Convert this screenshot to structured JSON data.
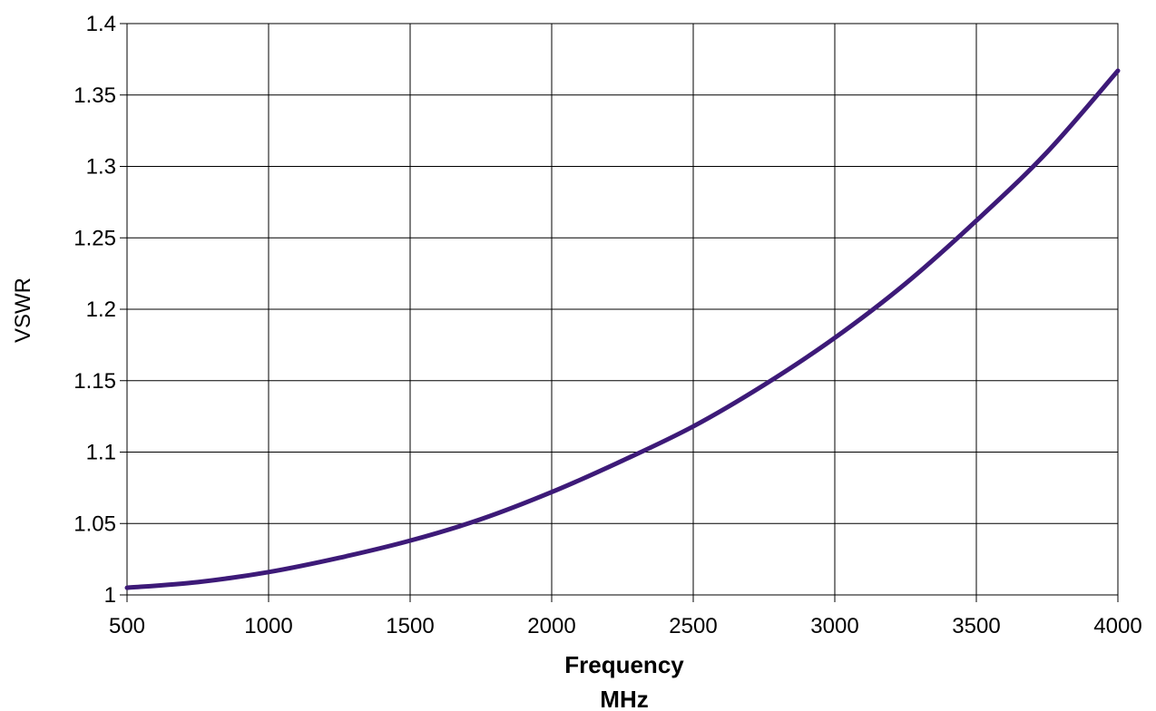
{
  "chart_data": {
    "type": "line",
    "title": "",
    "xlabel": "Frequency",
    "xlabel_unit": "MHz",
    "ylabel": "VSWR",
    "xlim": [
      500,
      4000
    ],
    "ylim": [
      1,
      1.4
    ],
    "x_ticks": [
      "500",
      "1000",
      "1500",
      "2000",
      "2500",
      "3000",
      "3500",
      "4000"
    ],
    "y_ticks": [
      "1",
      "1.05",
      "1.1",
      "1.15",
      "1.2",
      "1.25",
      "1.3",
      "1.35",
      "1.4"
    ],
    "grid": true,
    "legend": "none",
    "line_color": "#3d1a78",
    "series": [
      {
        "x": [
          500,
          750,
          1000,
          1250,
          1500,
          1750,
          2000,
          2250,
          2500,
          2750,
          3000,
          3250,
          3500,
          3750,
          4000
        ],
        "values": [
          1.005,
          1.009,
          1.016,
          1.026,
          1.038,
          1.053,
          1.072,
          1.094,
          1.118,
          1.147,
          1.18,
          1.218,
          1.262,
          1.31,
          1.367
        ]
      }
    ]
  }
}
